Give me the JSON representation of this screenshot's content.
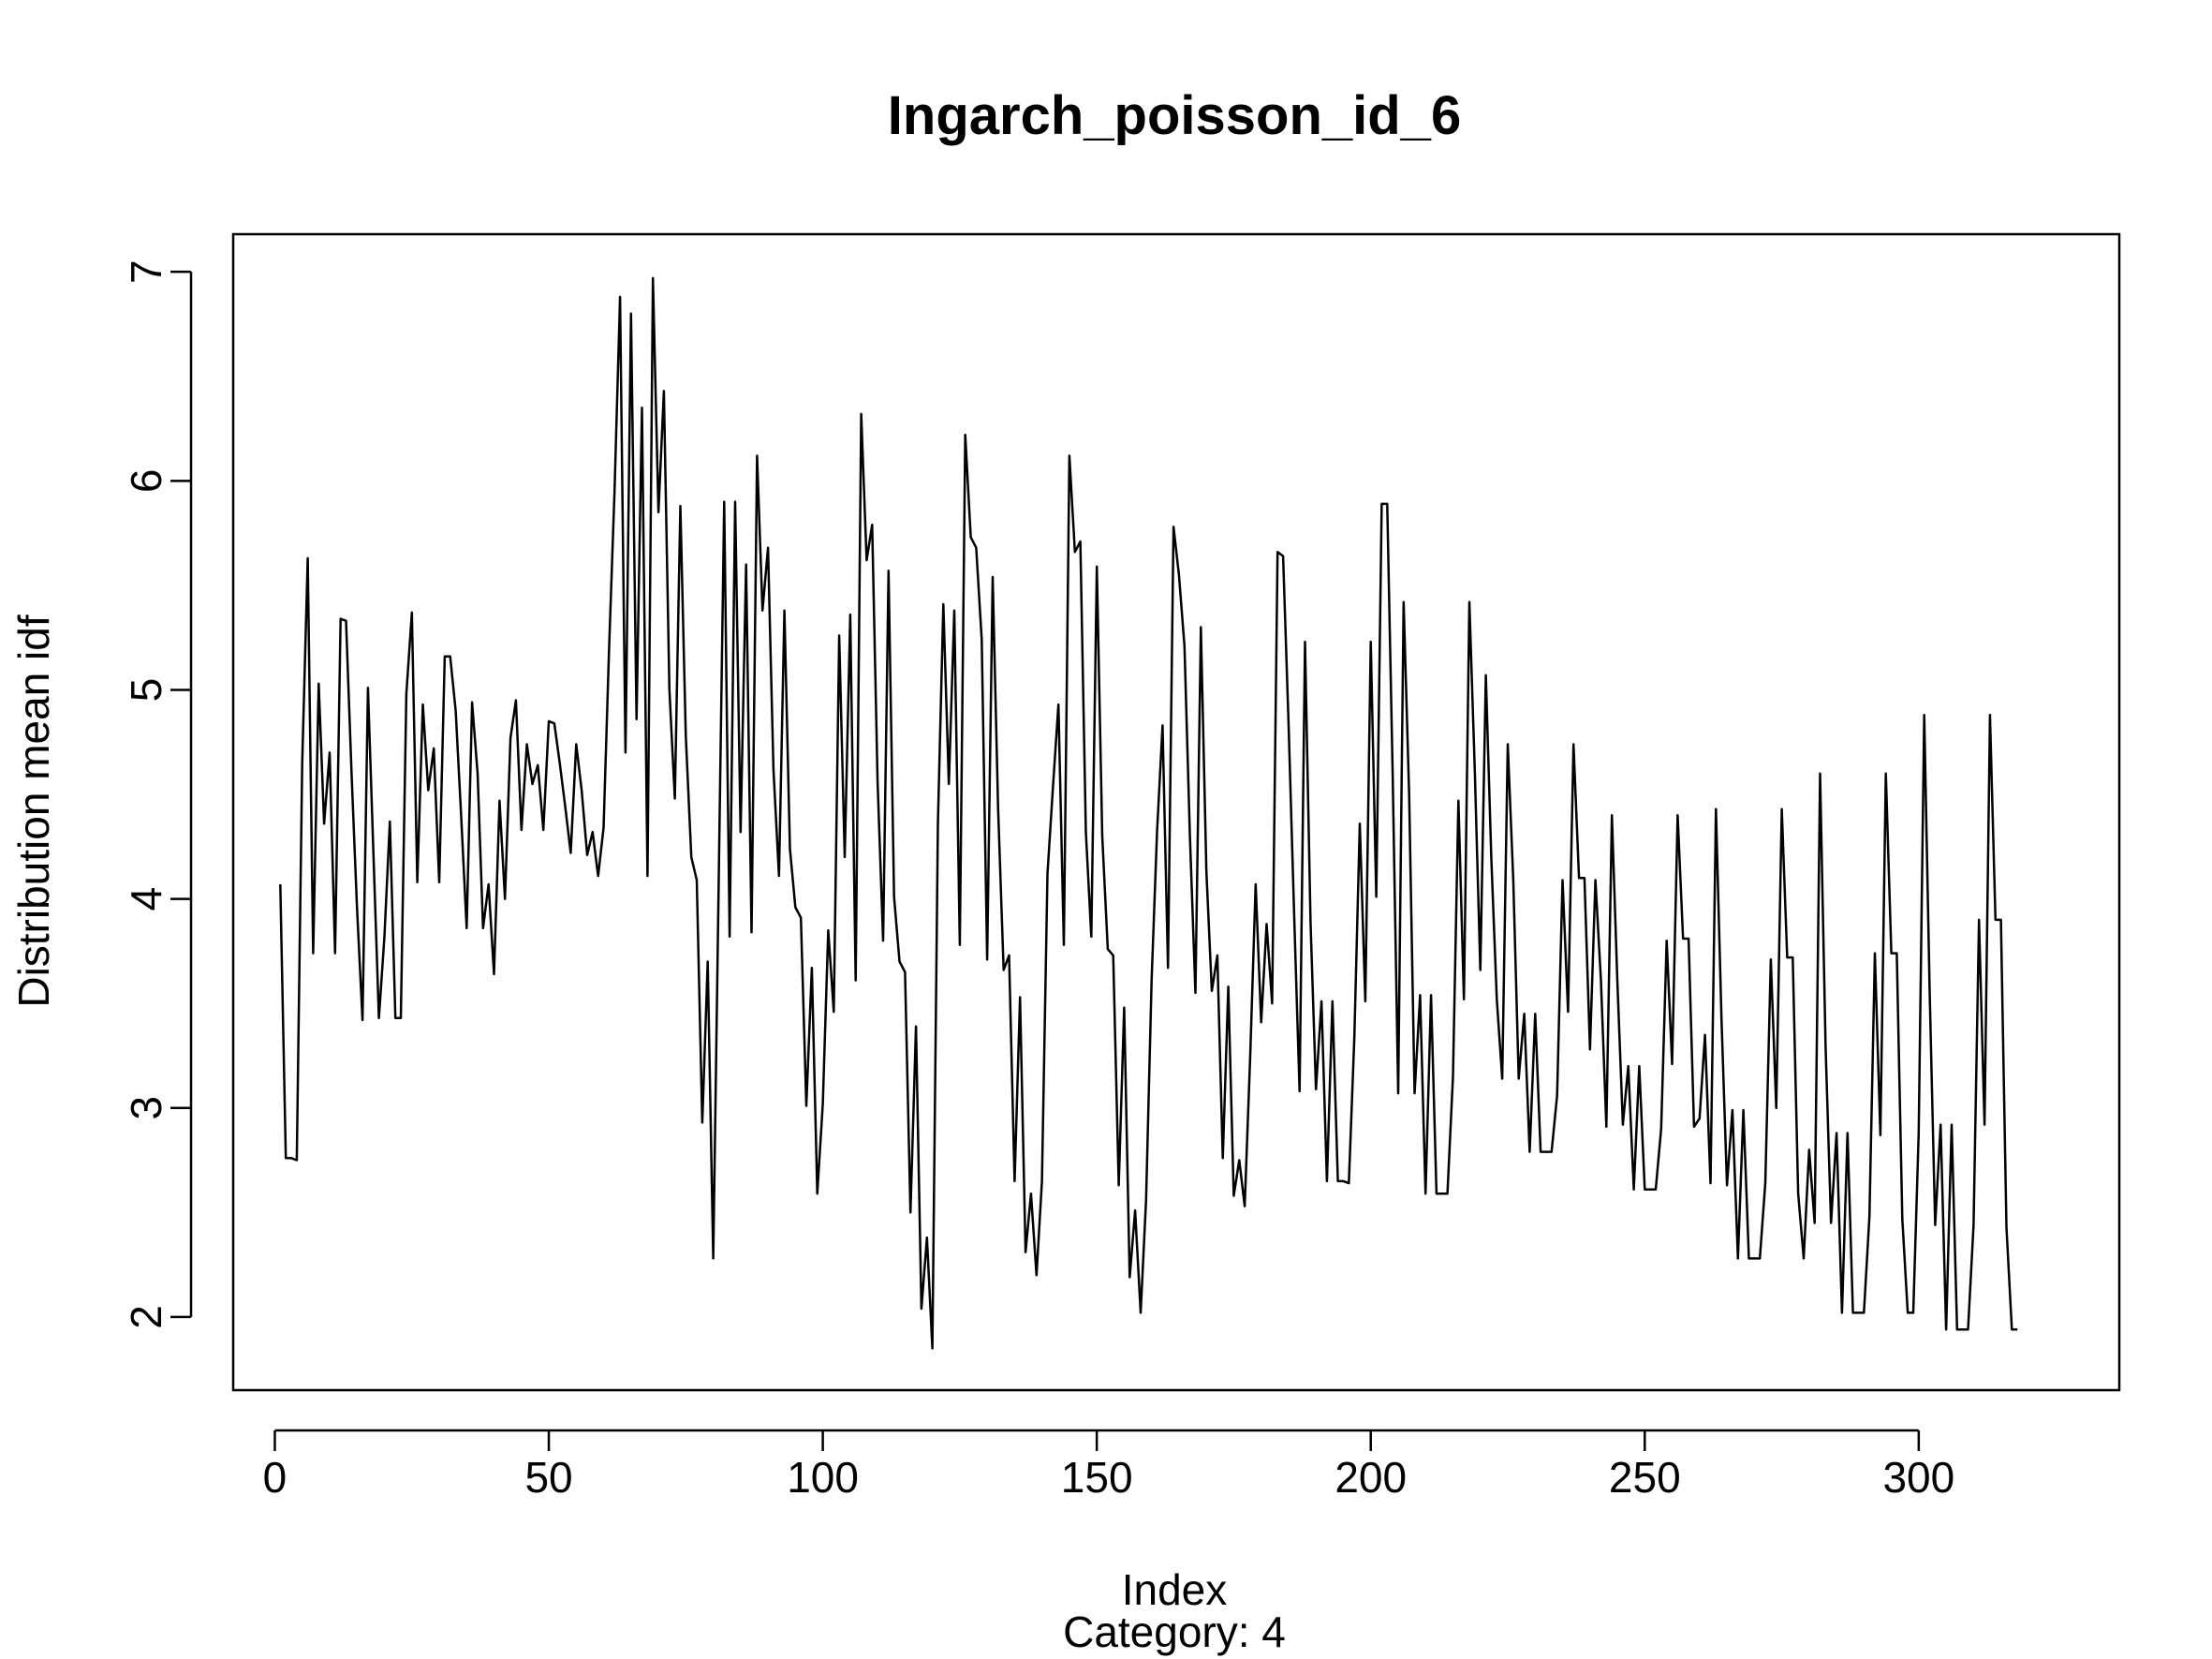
{
  "chart_data": {
    "type": "line",
    "title": "Ingarch_poisson_id_6",
    "xlabel": "Index",
    "ylabel": "Distribution mean idf",
    "subtitle": "Category: 4",
    "xlim": [
      -7.6,
      336.6
    ],
    "ylim": [
      1.65,
      7.18
    ],
    "x_ticks": [
      0,
      50,
      100,
      150,
      200,
      250,
      300
    ],
    "y_ticks": [
      2,
      3,
      4,
      5,
      6,
      7
    ],
    "grid": false,
    "legend": "none",
    "series": [
      {
        "values": [
          4.07,
          2.76,
          2.76,
          2.75,
          4.65,
          5.63,
          3.74,
          5.03,
          4.36,
          4.7,
          3.74,
          5.34,
          5.33,
          4.6,
          3.96,
          3.42,
          5.01,
          4.21,
          3.43,
          3.82,
          4.37,
          3.43,
          3.43,
          4.98,
          5.37,
          4.08,
          4.93,
          4.52,
          4.72,
          4.08,
          5.16,
          5.16,
          4.9,
          4.4,
          3.86,
          4.94,
          4.6,
          3.86,
          4.07,
          3.64,
          4.47,
          4.0,
          4.77,
          4.95,
          4.33,
          4.74,
          4.55,
          4.64,
          4.33,
          4.85,
          4.84,
          4.65,
          4.44,
          4.22,
          4.74,
          4.52,
          4.21,
          4.32,
          4.11,
          4.34,
          5.2,
          5.95,
          6.88,
          4.7,
          6.8,
          4.86,
          6.35,
          4.11,
          6.97,
          5.85,
          6.43,
          5.0,
          4.48,
          5.88,
          4.78,
          4.2,
          4.09,
          2.93,
          3.7,
          2.28,
          4.07,
          5.9,
          3.82,
          5.9,
          4.32,
          5.6,
          3.84,
          6.12,
          5.38,
          5.68,
          4.62,
          4.11,
          5.38,
          4.24,
          3.96,
          3.91,
          3.01,
          3.67,
          2.59,
          3.02,
          3.85,
          3.46,
          5.26,
          4.2,
          5.36,
          3.61,
          6.32,
          5.62,
          5.79,
          4.56,
          3.8,
          5.57,
          4.01,
          3.7,
          3.65,
          2.5,
          3.39,
          2.04,
          2.38,
          1.85,
          4.36,
          5.41,
          4.55,
          5.38,
          3.78,
          6.22,
          5.73,
          5.68,
          5.24,
          3.71,
          5.54,
          4.43,
          3.66,
          3.73,
          2.65,
          3.53,
          2.31,
          2.59,
          2.2,
          2.65,
          4.12,
          4.53,
          4.93,
          3.78,
          6.12,
          5.66,
          5.71,
          4.32,
          3.82,
          5.59,
          4.3,
          3.76,
          3.73,
          2.63,
          3.48,
          2.19,
          2.51,
          2.02,
          2.56,
          3.61,
          4.32,
          4.83,
          3.67,
          5.78,
          5.55,
          5.21,
          4.3,
          3.55,
          5.3,
          4.13,
          3.56,
          3.73,
          2.76,
          3.58,
          2.58,
          2.75,
          2.53,
          3.25,
          4.07,
          3.41,
          3.88,
          3.5,
          5.66,
          5.64,
          4.83,
          3.94,
          3.08,
          5.23,
          3.89,
          3.09,
          3.51,
          2.65,
          3.51,
          2.65,
          2.65,
          2.64,
          3.34,
          4.36,
          3.51,
          5.23,
          4.01,
          5.89,
          5.89,
          4.6,
          3.07,
          5.42,
          4.5,
          3.07,
          3.54,
          2.59,
          3.54,
          2.59,
          2.59,
          2.59,
          3.15,
          4.47,
          3.52,
          5.42,
          4.6,
          3.66,
          5.07,
          4.2,
          3.52,
          3.14,
          4.74,
          4.09,
          3.14,
          3.45,
          2.79,
          3.45,
          2.79,
          2.79,
          2.79,
          3.06,
          4.09,
          3.46,
          4.74,
          4.1,
          4.1,
          3.28,
          4.09,
          3.61,
          2.91,
          4.4,
          3.61,
          2.92,
          3.2,
          2.61,
          3.2,
          2.61,
          2.61,
          2.61,
          2.9,
          3.8,
          3.21,
          4.4,
          3.81,
          3.81,
          2.91,
          2.95,
          3.35,
          2.64,
          4.43,
          3.43,
          2.63,
          2.99,
          2.28,
          2.99,
          2.28,
          2.28,
          2.28,
          2.64,
          3.71,
          3.0,
          4.43,
          3.72,
          3.72,
          2.59,
          2.28,
          2.8,
          2.45,
          4.6,
          3.29,
          2.45,
          2.88,
          2.02,
          2.88,
          2.02,
          2.02,
          2.02,
          2.48,
          3.74,
          2.87,
          4.6,
          3.74,
          3.74,
          2.47,
          2.02,
          2.02,
          2.88,
          4.88,
          3.56,
          2.44,
          2.92,
          1.94,
          2.92,
          1.94,
          1.94,
          1.94,
          2.44,
          3.9,
          2.92,
          4.88,
          3.9,
          3.9,
          2.43,
          1.94,
          1.94
        ]
      }
    ]
  }
}
